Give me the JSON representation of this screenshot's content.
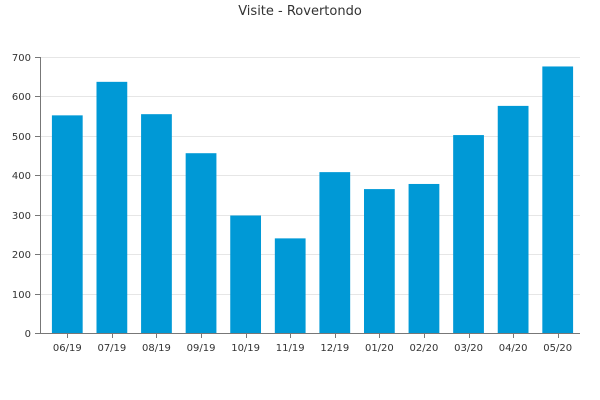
{
  "chart_data": {
    "type": "bar",
    "title": "Visite - Rovertondo",
    "xlabel": "",
    "ylabel": "",
    "categories": [
      "06/19",
      "07/19",
      "08/19",
      "09/19",
      "10/19",
      "11/19",
      "12/19",
      "01/20",
      "02/20",
      "03/20",
      "04/20",
      "05/20"
    ],
    "values": [
      552,
      637,
      555,
      456,
      298,
      240,
      408,
      365,
      378,
      502,
      576,
      676
    ],
    "ylim": [
      0,
      700
    ],
    "yticks": [
      0,
      100,
      200,
      300,
      400,
      500,
      600,
      700
    ],
    "grid": true,
    "legend": "none",
    "bar_color": "#0099d6"
  }
}
